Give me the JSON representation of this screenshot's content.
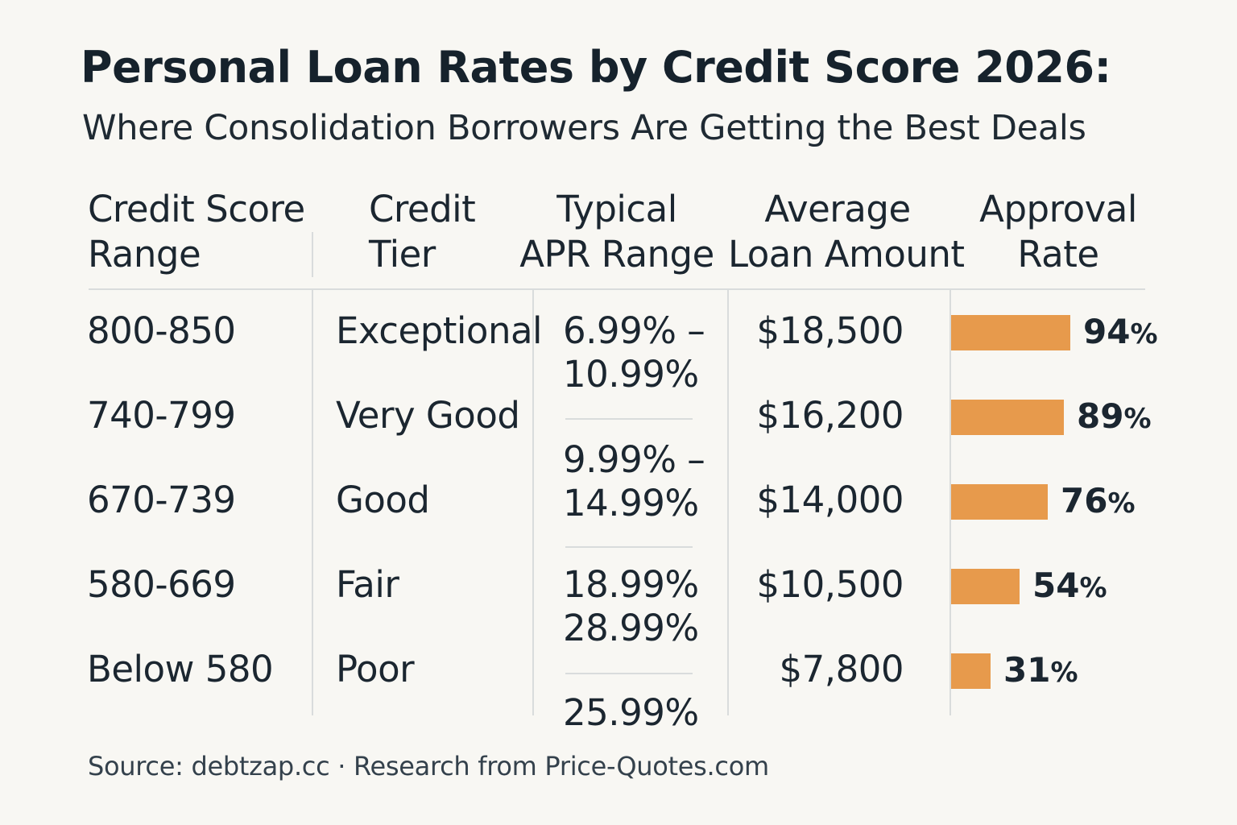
{
  "title": "Personal Loan Rates by Credit Score 2026:",
  "subtitle": "Where Consolidation Borrowers Are Getting the Best Deals",
  "headers": {
    "range": [
      "Credit Score",
      "Range"
    ],
    "tier": [
      "Credit",
      "Tier"
    ],
    "apr": [
      "Typical",
      "APR Range"
    ],
    "amount": [
      "Average",
      "Loan Amount"
    ],
    "approval": [
      "Approval",
      "Rate"
    ]
  },
  "apr_texts": [
    "6.99% –",
    "10.99%",
    "9.99% –",
    "14.99%",
    "18.99%",
    "28.99%",
    "25.99%"
  ],
  "source": "Source: debtzap.cc · Research from Price-Quotes.com",
  "colors": {
    "bar": "#e79a4c",
    "text": "#1b2630",
    "rule": "#d9dcdc",
    "background": "#f8f7f3"
  },
  "chart_data": {
    "type": "table",
    "title": "Personal Loan Rates by Credit Score 2026:",
    "subtitle": "Where Consolidation Borrowers Are Getting the Best Deals",
    "columns": [
      "Credit Score Range",
      "Credit Tier",
      "Typical APR Range",
      "Average Loan Amount",
      "Approval Rate"
    ],
    "rows": [
      {
        "range": "800-850",
        "tier": "Exceptional",
        "amount": "$18,500",
        "approval": 94
      },
      {
        "range": "740-799",
        "tier": "Very Good",
        "amount": "$16,200",
        "approval": 89
      },
      {
        "range": "670-739",
        "tier": "Good",
        "amount": "$14,000",
        "approval": 76
      },
      {
        "range": "580-669",
        "tier": "Fair",
        "amount": "$10,500",
        "approval": 54
      },
      {
        "range": "Below 580",
        "tier": "Poor",
        "amount": "$7,800",
        "approval": 31
      }
    ],
    "approval_unit": "%"
  }
}
